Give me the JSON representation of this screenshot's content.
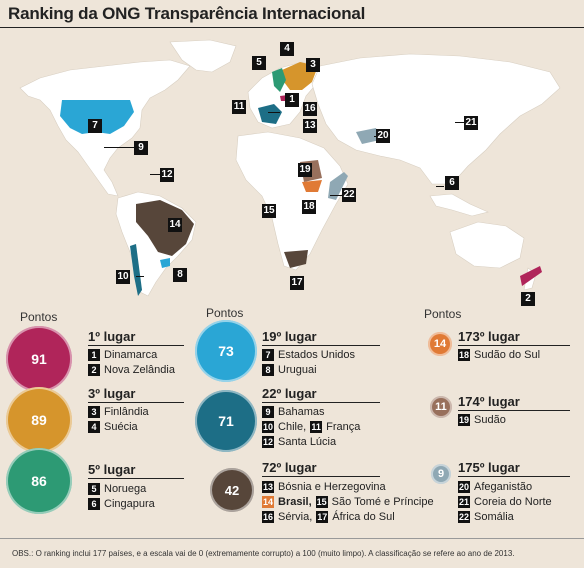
{
  "title": "Ranking da ONG Transparência Internacional",
  "colors": {
    "score_91": "#b0255a",
    "score_89": "#d6952c",
    "score_86": "#2d9a74",
    "score_73": "#2aa6d5",
    "score_71": "#1d6e86",
    "score_42": "#57463a",
    "score_14": "#e07a35",
    "score_11": "#98705c",
    "score_9": "#8fa8b4",
    "land": "#ffffff",
    "background": "#eee5d9"
  },
  "map_markers": [
    "1",
    "2",
    "3",
    "4",
    "5",
    "6",
    "7",
    "8",
    "9",
    "10",
    "11",
    "12",
    "13",
    "14",
    "15",
    "16",
    "17",
    "18",
    "19",
    "20",
    "21",
    "22"
  ],
  "points_label": "Pontos",
  "groups": [
    {
      "score": "91",
      "place": "1º lugar",
      "countries": [
        {
          "n": "1",
          "name": "Dinamarca"
        },
        {
          "n": "2",
          "name": "Nova Zelândia"
        }
      ]
    },
    {
      "score": "89",
      "place": "3º lugar",
      "countries": [
        {
          "n": "3",
          "name": "Finlândia"
        },
        {
          "n": "4",
          "name": "Suécia"
        }
      ]
    },
    {
      "score": "86",
      "place": "5º lugar",
      "countries": [
        {
          "n": "5",
          "name": "Noruega"
        },
        {
          "n": "6",
          "name": "Cingapura"
        }
      ]
    },
    {
      "score": "73",
      "place": "19º lugar",
      "countries": [
        {
          "n": "7",
          "name": "Estados Unidos"
        },
        {
          "n": "8",
          "name": "Uruguai"
        }
      ]
    },
    {
      "score": "71",
      "place": "22º lugar",
      "countries": [
        {
          "n": "9",
          "name": "Bahamas"
        },
        {
          "n": "10",
          "name": "Chile,"
        },
        {
          "n": "11",
          "name": "França"
        },
        {
          "n": "12",
          "name": "Santa Lúcia"
        }
      ]
    },
    {
      "score": "42",
      "place": "72º lugar",
      "countries": [
        {
          "n": "13",
          "name": "Bósnia e Herzegovina"
        },
        {
          "n": "14",
          "name": "Brasil,"
        },
        {
          "n": "15",
          "name": "São Tomé e Príncipe"
        },
        {
          "n": "16",
          "name": "Sérvia,"
        },
        {
          "n": "17",
          "name": "África do Sul"
        }
      ]
    },
    {
      "score": "14",
      "place": "173º lugar",
      "countries": [
        {
          "n": "18",
          "name": "Sudão do Sul"
        }
      ]
    },
    {
      "score": "11",
      "place": "174º lugar",
      "countries": [
        {
          "n": "19",
          "name": "Sudão"
        }
      ]
    },
    {
      "score": "9",
      "place": "175º lugar",
      "countries": [
        {
          "n": "20",
          "name": "Afeganistão"
        },
        {
          "n": "21",
          "name": "Coreia do Norte"
        },
        {
          "n": "22",
          "name": "Somália"
        }
      ]
    }
  ],
  "footnote": "OBS.: O ranking inclui 177 países, e a escala vai de 0 (extremamente corrupto) a 100 (muito limpo). A classificação se refere ao ano de 2013."
}
